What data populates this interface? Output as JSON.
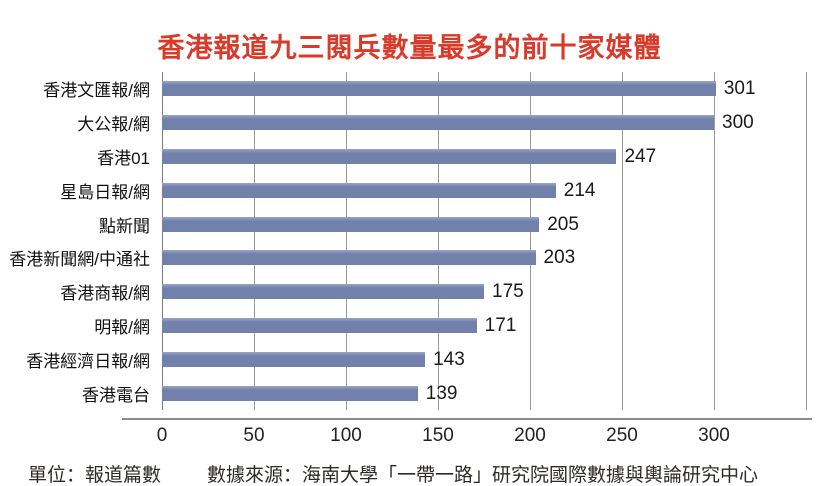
{
  "title": "香港報道九三閱兵數量最多的前十家媒體",
  "footer": {
    "unit": "單位：報道篇數",
    "source": "數據來源：海南大學「一帶一路」研究院國際數據與輿論研究中心"
  },
  "colors": {
    "title_red": "#d93b2a",
    "bar_fill": "#7280ac",
    "bar_top_highlight": "#9aa5c6",
    "gridline": "#9b9b9b",
    "zero_axis": "#7d7d7d",
    "x_axis_line": "#8a8a8a"
  },
  "chart_data": {
    "type": "bar",
    "orientation": "horizontal",
    "title": "香港報道九三閱兵數量最多的前十家媒體",
    "categories": [
      "香港文匯報/網",
      "大公報/網",
      "香港01",
      "星島日報/網",
      "點新聞",
      "香港新聞網/中通社",
      "香港商報/網",
      "明報/網",
      "香港經濟日報/網",
      "香港電台"
    ],
    "values": [
      301,
      300,
      247,
      214,
      205,
      203,
      175,
      171,
      143,
      139
    ],
    "xlabel": "",
    "ylabel": "",
    "xlim": [
      0,
      350
    ],
    "xticks": [
      0,
      50,
      100,
      150,
      200,
      250,
      300
    ],
    "gridline_interval": 50,
    "grid": "vertical",
    "value_labels": true,
    "legend": "none",
    "unit": "報道篇數"
  }
}
